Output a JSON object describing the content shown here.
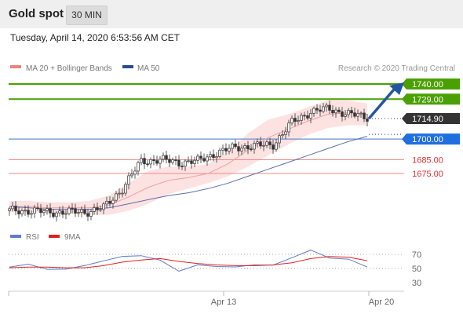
{
  "header": {
    "title": "Gold spot",
    "interval": "30 MIN",
    "timestamp": "Tuesday, April 14, 2020 6:53:56 AM CET"
  },
  "legend": {
    "items": [
      {
        "label": "MA 20 + Bollinger Bands",
        "color": "#f08080"
      },
      {
        "label": "MA 50",
        "color": "#2b4c8c"
      }
    ],
    "credit": "Research © 2020 Trading Central"
  },
  "colors": {
    "resistance": "#4aa000",
    "pivot": "#1f6fe0",
    "support": "#e06060",
    "current": "#333333",
    "candle": "#333333",
    "bollinger_fill": "#fde2e2",
    "arrow": "#2456a0",
    "rsi": "#5c7cc8",
    "rsi_ma": "#e02020"
  },
  "chart_data": [
    {
      "type": "candlestick",
      "title": "Gold spot",
      "x_ticks": [
        "Apr 13",
        "Apr 20"
      ],
      "levels": [
        {
          "value": 1740.0,
          "label": "1740.00",
          "kind": "resistance"
        },
        {
          "value": 1729.0,
          "label": "1729.00",
          "kind": "resistance"
        },
        {
          "value": 1714.9,
          "label": "1714.90",
          "kind": "current"
        },
        {
          "value": 1700.0,
          "label": "1700.00",
          "kind": "pivot"
        },
        {
          "value": 1685.0,
          "label": "1685.00",
          "kind": "support"
        },
        {
          "value": 1675.0,
          "label": "1675.00",
          "kind": "support"
        }
      ],
      "series": [
        {
          "name": "MA 20 + Bollinger Bands",
          "values": [
            1651,
            1651,
            1650,
            1650,
            1650,
            1652,
            1658,
            1665,
            1670,
            1672,
            1675,
            1682,
            1692,
            1701,
            1707,
            1713,
            1718,
            1719,
            1718
          ]
        },
        {
          "name": "MA 50",
          "values": [
            1651,
            1650,
            1649,
            1649,
            1649,
            1650,
            1653,
            1656,
            1659,
            1661,
            1664,
            1668,
            1673,
            1678,
            1683,
            1688,
            1693,
            1698,
            1702
          ]
        }
      ],
      "close": [
        1648,
        1648,
        1647,
        1647,
        1647,
        1650,
        1664,
        1684,
        1685,
        1683,
        1684,
        1690,
        1694,
        1695,
        1696,
        1712,
        1720,
        1722,
        1718,
        1716
      ]
    },
    {
      "type": "line",
      "title": "RSI",
      "y_ticks": [
        30,
        50,
        70
      ],
      "series": [
        {
          "name": "RSI",
          "values": [
            52,
            54,
            51,
            49,
            52,
            63,
            67,
            66,
            64,
            46,
            53,
            55,
            52,
            53,
            57,
            65,
            74,
            67,
            63,
            50
          ]
        },
        {
          "name": "9MA",
          "values": [
            51,
            52,
            52,
            51,
            51,
            54,
            59,
            62,
            64,
            60,
            57,
            55,
            54,
            54,
            55,
            58,
            64,
            67,
            66,
            61
          ]
        }
      ]
    }
  ]
}
